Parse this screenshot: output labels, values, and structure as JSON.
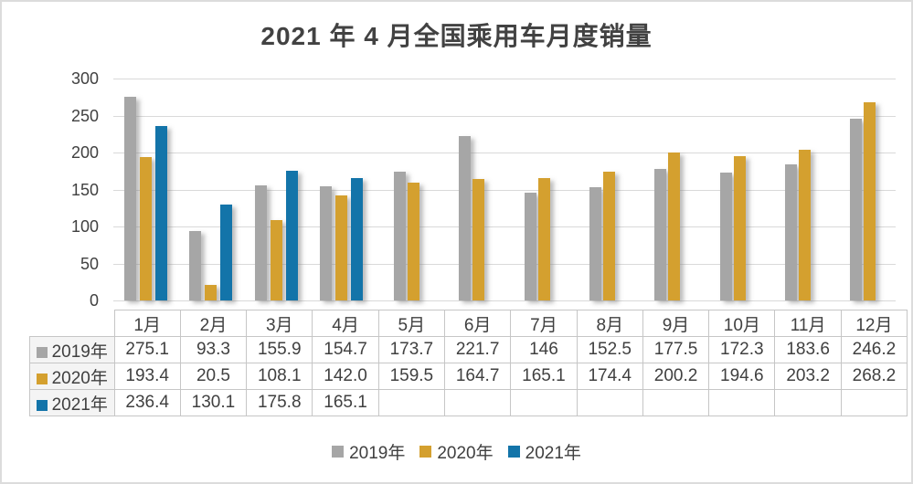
{
  "title": "2021 年 4 月全国乘用车月度销量",
  "chart_data": {
    "type": "bar",
    "title": "2021 年 4 月全国乘用车月度销量",
    "categories": [
      "1月",
      "2月",
      "3月",
      "4月",
      "5月",
      "6月",
      "7月",
      "8月",
      "9月",
      "10月",
      "11月",
      "12月"
    ],
    "series": [
      {
        "name": "2019年",
        "color": "#a6a6a6",
        "values": [
          275.1,
          93.3,
          155.9,
          154.7,
          173.7,
          221.7,
          146,
          152.5,
          177.5,
          172.3,
          183.6,
          246.2
        ]
      },
      {
        "name": "2020年",
        "color": "#d4a02f",
        "values": [
          193.4,
          20.5,
          108.1,
          142.0,
          159.5,
          164.7,
          165.1,
          174.4,
          200.2,
          194.6,
          203.2,
          268.2
        ]
      },
      {
        "name": "2021年",
        "color": "#1374a9",
        "values": [
          236.4,
          130.1,
          175.8,
          165.1,
          null,
          null,
          null,
          null,
          null,
          null,
          null,
          null
        ]
      }
    ],
    "ylim": [
      0,
      300
    ],
    "yticks": [
      300,
      250,
      200,
      150,
      100,
      50,
      0
    ],
    "grid": true,
    "gridline_color": "#d9d9d9",
    "legend_position": "bottom"
  },
  "table": {
    "columns": [
      "1月",
      "2月",
      "3月",
      "4月",
      "5月",
      "6月",
      "7月",
      "8月",
      "9月",
      "10月",
      "11月",
      "12月"
    ],
    "rows": [
      {
        "label": "2019年",
        "key_color": "#a6a6a6",
        "cells": [
          "275.1",
          "93.3",
          "155.9",
          "154.7",
          "173.7",
          "221.7",
          "146",
          "152.5",
          "177.5",
          "172.3",
          "183.6",
          "246.2"
        ]
      },
      {
        "label": "2020年",
        "key_color": "#d4a02f",
        "cells": [
          "193.4",
          "20.5",
          "108.1",
          "142.0",
          "159.5",
          "164.7",
          "165.1",
          "174.4",
          "200.2",
          "194.6",
          "203.2",
          "268.2"
        ]
      },
      {
        "label": "2021年",
        "key_color": "#1374a9",
        "cells": [
          "236.4",
          "130.1",
          "175.8",
          "165.1",
          "",
          "",
          "",
          "",
          "",
          "",
          "",
          ""
        ]
      }
    ]
  },
  "legend": {
    "items": [
      {
        "label": "2019年",
        "color": "#a6a6a6"
      },
      {
        "label": "2020年",
        "color": "#d4a02f"
      },
      {
        "label": "2021年",
        "color": "#1374a9"
      }
    ]
  }
}
